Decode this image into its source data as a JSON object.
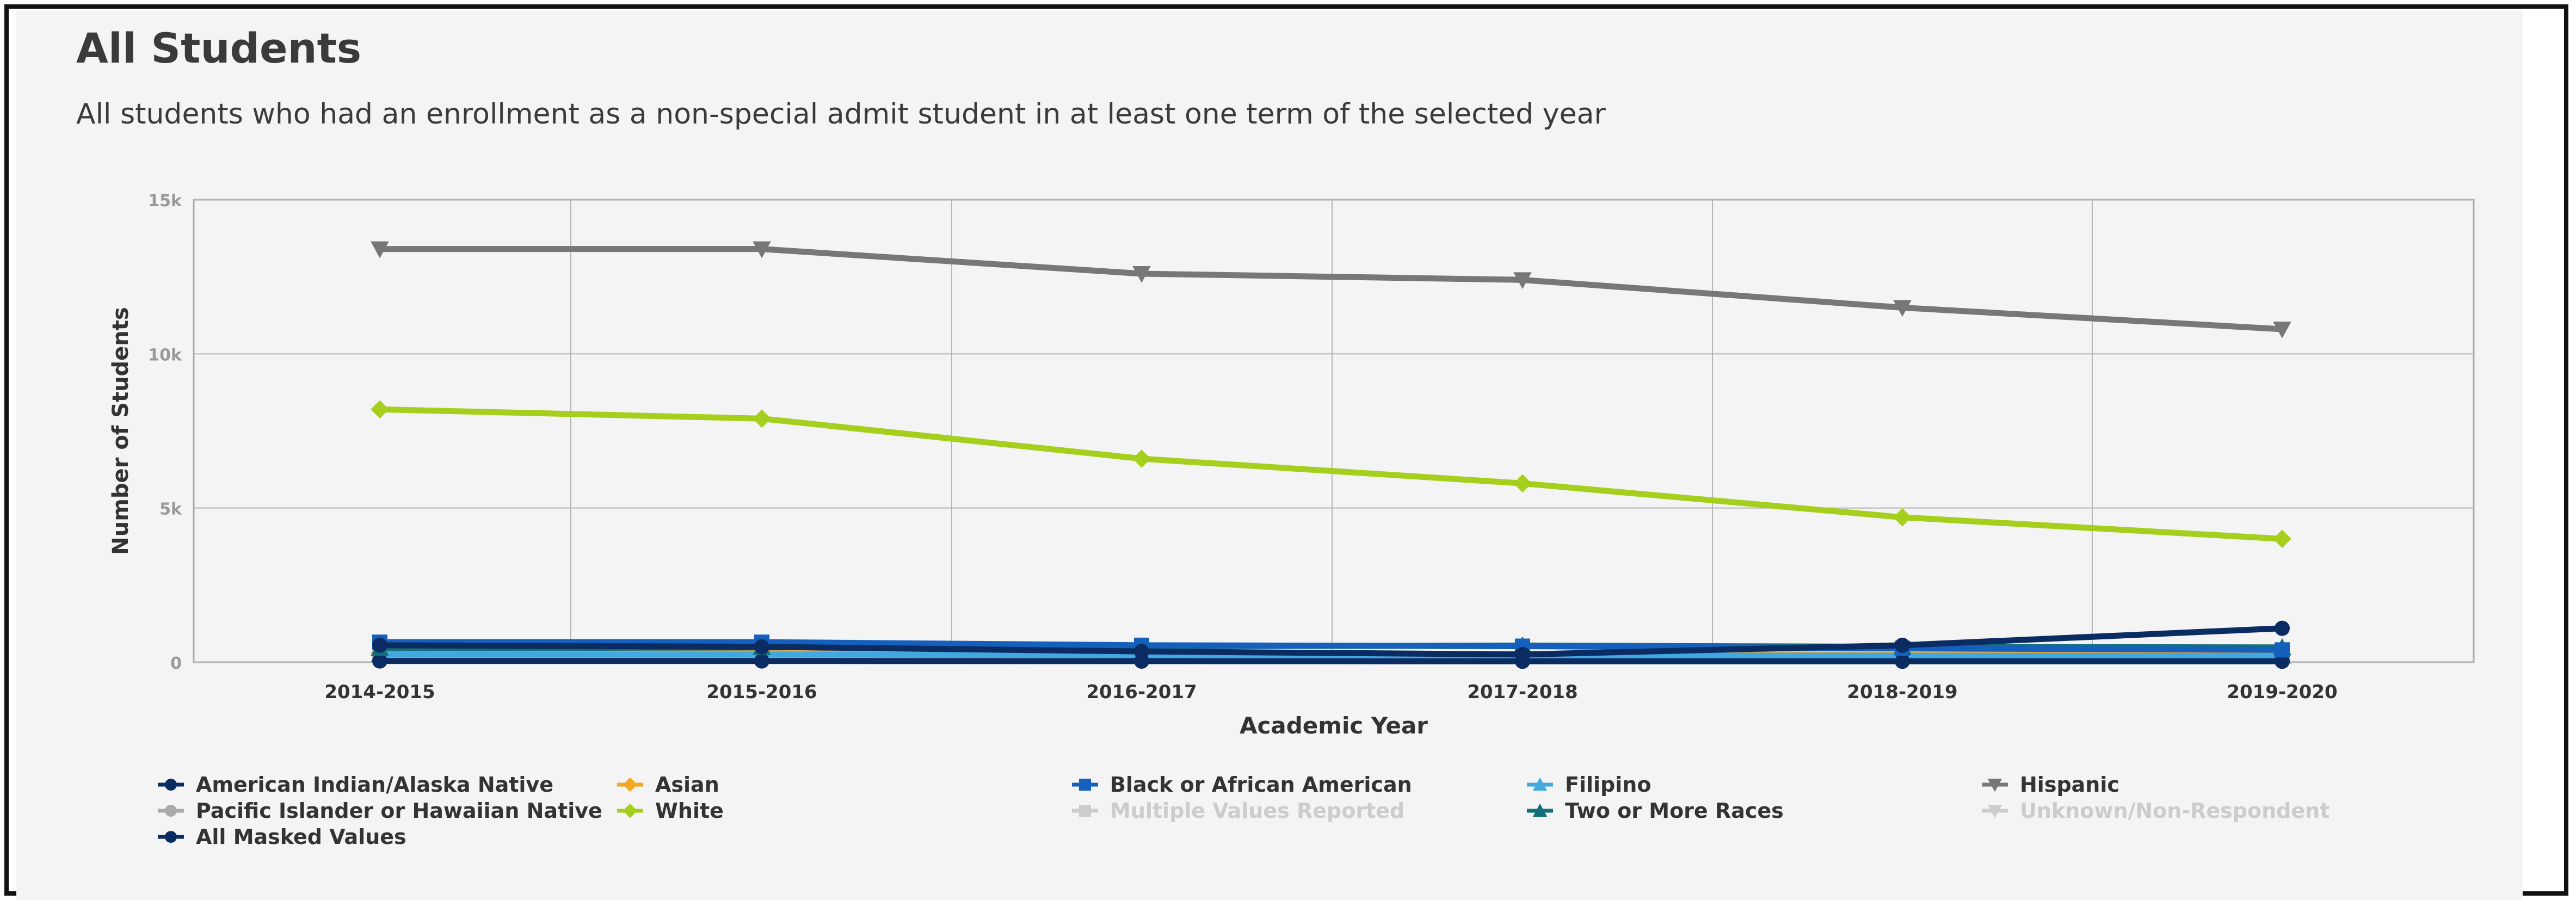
{
  "header": {
    "title": "All Students",
    "subtitle": "All students who had an enrollment as a non-special admit student in at least one term of the selected year"
  },
  "chart_data": {
    "type": "line",
    "xlabel": "Academic Year",
    "ylabel": "Number of Students",
    "ylim": [
      0,
      15000
    ],
    "yticks": [
      0,
      5000,
      10000,
      15000
    ],
    "ytick_labels": [
      "0",
      "5k",
      "10k",
      "15k"
    ],
    "categories": [
      "2014-2015",
      "2015-2016",
      "2016-2017",
      "2017-2018",
      "2018-2019",
      "2019-2020"
    ],
    "grid": true,
    "legend_position": "bottom",
    "series": [
      {
        "name": "American Indian/Alaska Native",
        "color": "#0b2b63",
        "marker": "circle",
        "values": [
          40,
          40,
          35,
          30,
          30,
          30
        ],
        "visible": true
      },
      {
        "name": "Asian",
        "color": "#f5a623",
        "marker": "diamond",
        "values": [
          300,
          290,
          270,
          260,
          250,
          240
        ],
        "visible": true
      },
      {
        "name": "Black or African American",
        "color": "#1560bd",
        "marker": "square",
        "values": [
          650,
          650,
          550,
          520,
          450,
          400
        ],
        "visible": true
      },
      {
        "name": "Filipino",
        "color": "#41a9e0",
        "marker": "triangle",
        "values": [
          250,
          250,
          230,
          220,
          210,
          200
        ],
        "visible": true
      },
      {
        "name": "Hispanic",
        "color": "#777777",
        "marker": "triangle-down",
        "values": [
          13400,
          13400,
          12600,
          12400,
          11500,
          10800
        ],
        "visible": true
      },
      {
        "name": "Pacific Islander or Hawaiian Native",
        "color": "#aaaaaa",
        "marker": "circle",
        "values": [
          150,
          130,
          120,
          110,
          100,
          90
        ],
        "visible": true
      },
      {
        "name": "White",
        "color": "#a5cf1c",
        "marker": "diamond",
        "values": [
          8200,
          7900,
          6600,
          5800,
          4700,
          4000
        ],
        "visible": true
      },
      {
        "name": "Multiple Values Reported",
        "color": "#cccccc",
        "marker": "square",
        "values": [
          0,
          0,
          0,
          0,
          0,
          0
        ],
        "visible": false
      },
      {
        "name": "Two or More Races",
        "color": "#136f7a",
        "marker": "triangle",
        "values": [
          450,
          480,
          520,
          540,
          500,
          480
        ],
        "visible": true
      },
      {
        "name": "Unknown/Non-Respondent",
        "color": "#cccccc",
        "marker": "triangle-down",
        "values": [
          0,
          0,
          0,
          0,
          0,
          0
        ],
        "visible": false
      },
      {
        "name": "All Masked Values",
        "color": "#0b2b63",
        "marker": "circle",
        "values": [
          550,
          500,
          350,
          250,
          550,
          1100
        ],
        "visible": true
      }
    ]
  }
}
